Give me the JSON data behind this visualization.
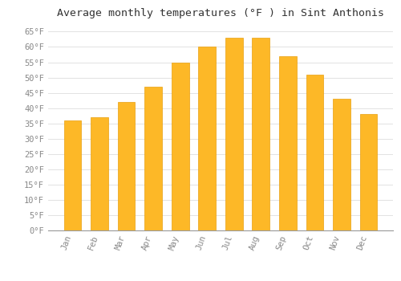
{
  "title": "Average monthly temperatures (°F ) in Sint Anthonis",
  "months": [
    "Jan",
    "Feb",
    "Mar",
    "Apr",
    "May",
    "Jun",
    "Jul",
    "Aug",
    "Sep",
    "Oct",
    "Nov",
    "Dec"
  ],
  "values": [
    36,
    37,
    42,
    47,
    55,
    60,
    63,
    63,
    57,
    51,
    43,
    38
  ],
  "bar_color": "#FDB827",
  "bar_edge_color": "#E8A010",
  "background_color": "#FFFFFF",
  "grid_color": "#DDDDDD",
  "ylim": [
    0,
    68
  ],
  "yticks": [
    0,
    5,
    10,
    15,
    20,
    25,
    30,
    35,
    40,
    45,
    50,
    55,
    60,
    65
  ],
  "ylabel_suffix": "°F",
  "title_fontsize": 9.5,
  "tick_fontsize": 7.5,
  "font_family": "monospace"
}
